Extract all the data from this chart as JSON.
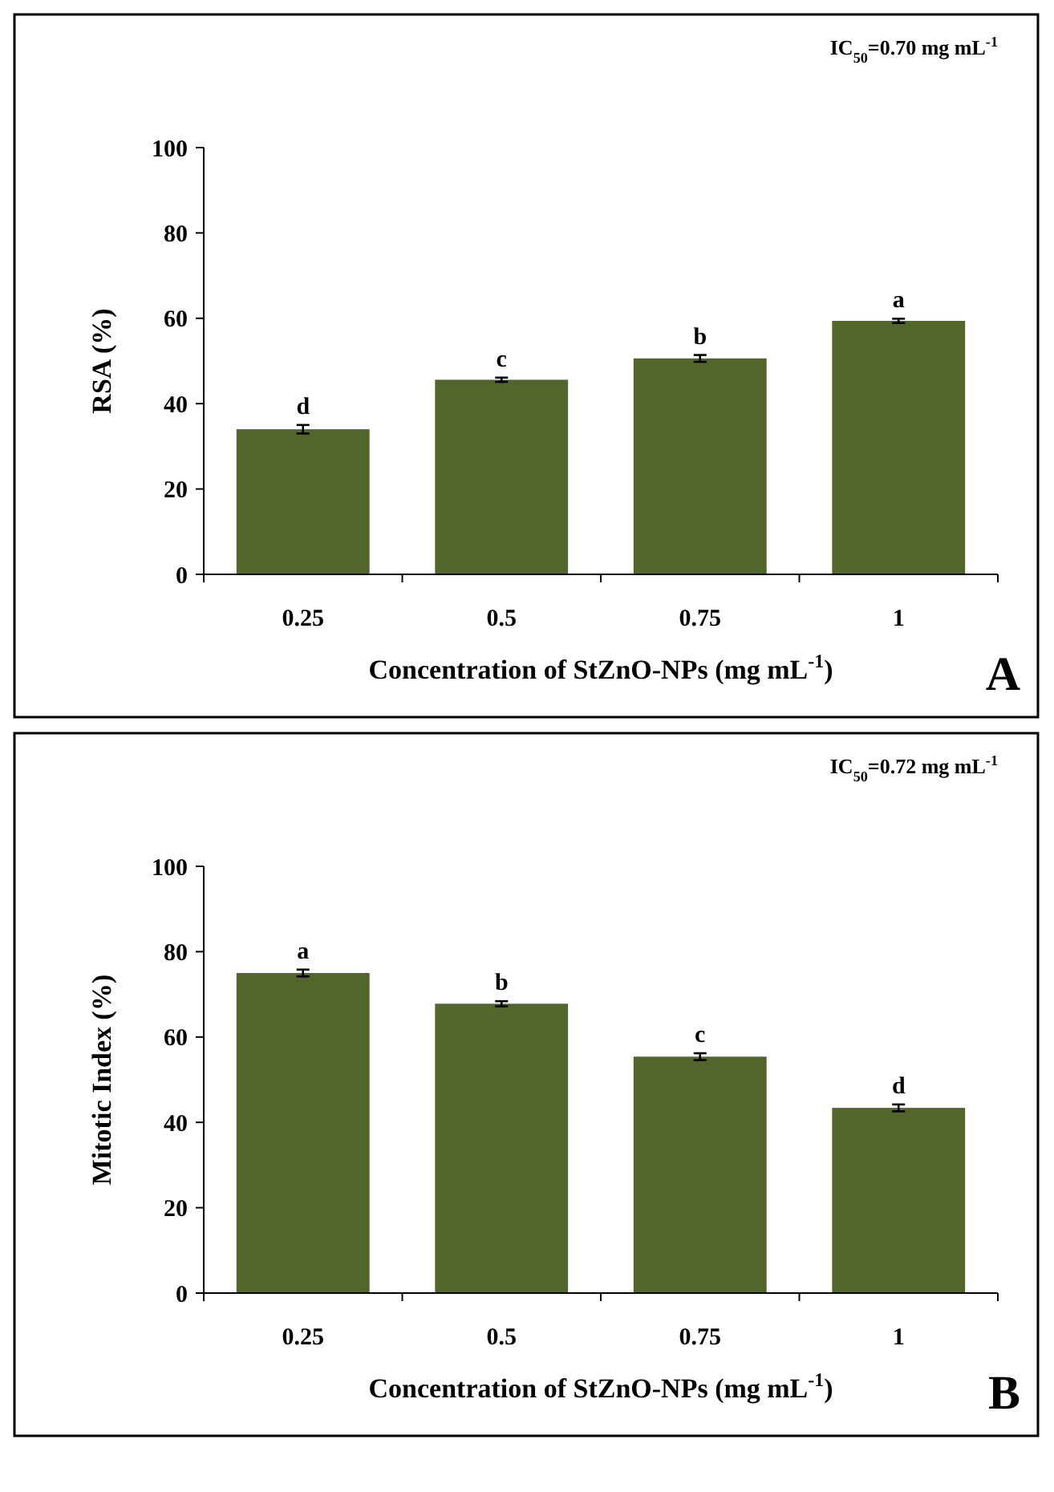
{
  "chart_data": [
    {
      "type": "bar",
      "ylabel": "RSA (%)",
      "xlabel": "Concentration of StZnO-NPs (mg mL$^{-1}$)",
      "categories": [
        "0.25",
        "0.5",
        "0.75",
        "1"
      ],
      "values": [
        34,
        45.6,
        50.6,
        59.4
      ],
      "errors": [
        1,
        0.5,
        0.8,
        0.5
      ],
      "color": "#52652a",
      "ylim": [
        0,
        100
      ],
      "yticks": [
        0,
        20,
        40,
        60,
        80,
        100
      ],
      "grid": false,
      "annotations": [
        "IC$_{50}$=0.70 mg mL$^{-1}$",
        "A",
        {
          "text": "d",
          "x": "0.25",
          "y": 35
        },
        {
          "text": "c",
          "x": "0.5",
          "y": 46.1
        },
        {
          "text": "b",
          "x": "0.75",
          "y": 51.4
        },
        {
          "text": "a",
          "x": "1",
          "y": 59.9
        }
      ]
    },
    {
      "type": "bar",
      "ylabel": "Mitotic Index (%)",
      "xlabel": "Concentration of StZnO-NPs (mg mL$^{-1}$)",
      "categories": [
        "0.25",
        "0.5",
        "0.75",
        "1"
      ],
      "values": [
        75,
        67.8,
        55.4,
        43.4
      ],
      "errors": [
        0.8,
        0.6,
        0.8,
        0.8
      ],
      "color": "#52652a",
      "ylim": [
        0,
        100
      ],
      "yticks": [
        0,
        20,
        40,
        60,
        80,
        100
      ],
      "grid": false,
      "annotations": [
        "IC$_{50}$=0.72 mg mL$^{-1}$",
        "B",
        {
          "text": "a",
          "x": "0.25",
          "y": 75.8
        },
        {
          "text": "b",
          "x": "0.5",
          "y": 68.4
        },
        {
          "text": "c",
          "x": "0.75",
          "y": 56.2
        },
        {
          "text": "d",
          "x": "1",
          "y": 44.2
        }
      ]
    }
  ]
}
